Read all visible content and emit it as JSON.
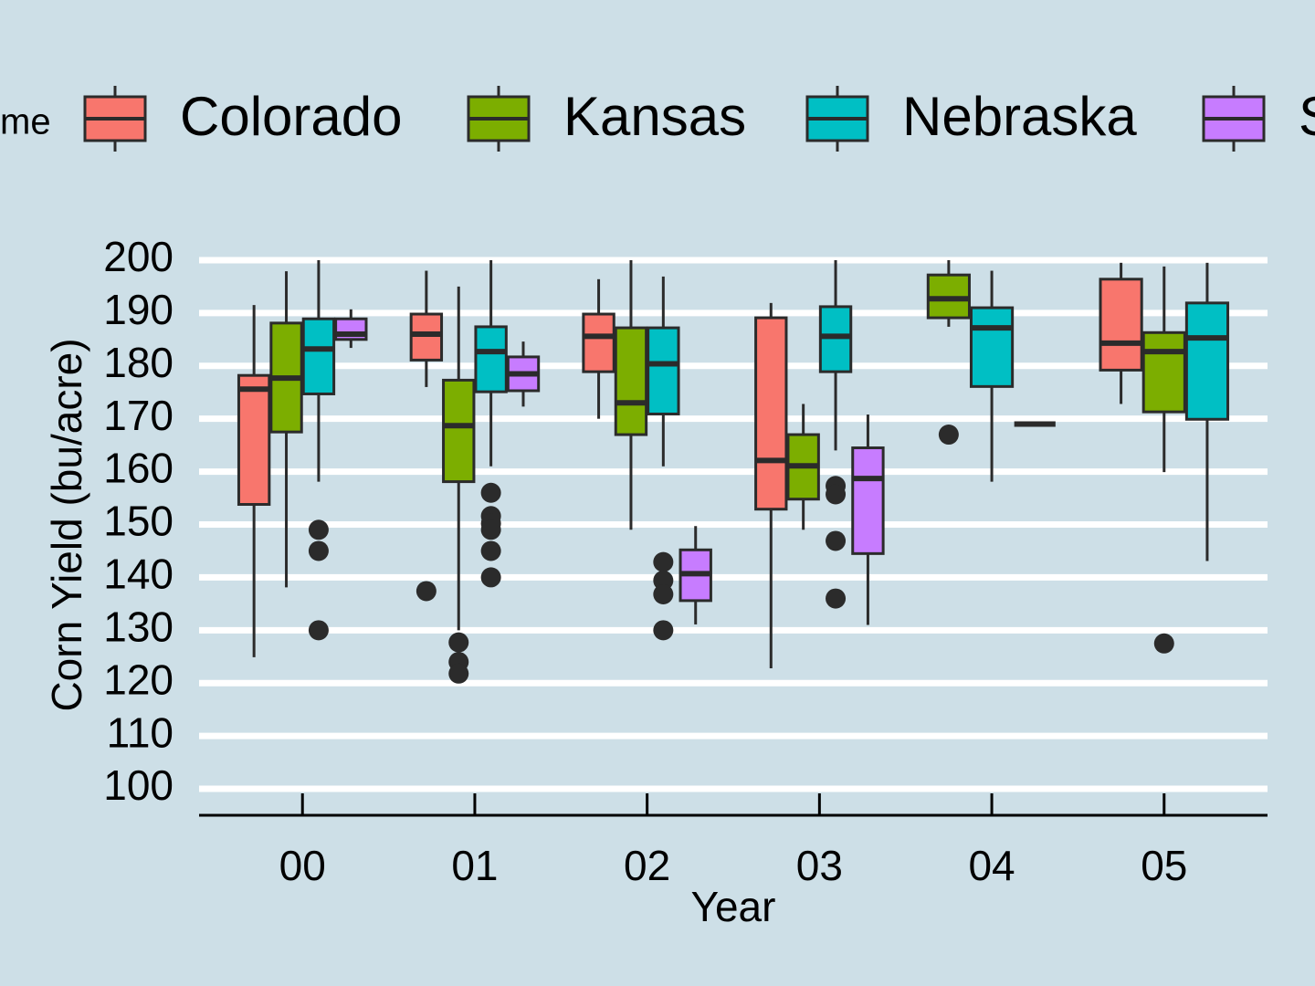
{
  "chart_data": {
    "type": "box",
    "legend_title": "me",
    "x_label": "Year",
    "y_label": "Corn Yield (bu/acre)",
    "categories": [
      "00",
      "01",
      "02",
      "03",
      "04",
      "05"
    ],
    "ylim": [
      95,
      205
    ],
    "yticks": [
      100,
      110,
      120,
      130,
      140,
      150,
      160,
      170,
      180,
      190,
      200
    ],
    "grid": true,
    "legend_position": "top",
    "series": [
      {
        "name": "Colorado",
        "color": "#f8766d",
        "boxes": [
          {
            "min": 124.9,
            "q1": 153.8,
            "median": 175.6,
            "q3": 178.2,
            "max": 191.5,
            "outliers": []
          },
          {
            "min": 176,
            "q1": 181.1,
            "median": 186,
            "q3": 189.8,
            "max": 198,
            "outliers": [
              137.4
            ]
          },
          {
            "min": 170,
            "q1": 178.9,
            "median": 185.6,
            "q3": 189.8,
            "max": 196.4,
            "outliers": []
          },
          {
            "min": 122.8,
            "q1": 152.9,
            "median": 162.1,
            "q3": 189.1,
            "max": 191.9,
            "outliers": []
          },
          null,
          {
            "min": 172.8,
            "q1": 179.2,
            "median": 184.3,
            "q3": 196.4,
            "max": 199.5,
            "outliers": []
          }
        ]
      },
      {
        "name": "Kansas",
        "color": "#7cae00",
        "boxes": [
          {
            "min": 138.1,
            "q1": 167.5,
            "median": 177.7,
            "q3": 188.1,
            "max": 197.9,
            "outliers": []
          },
          {
            "min": 130,
            "q1": 158.1,
            "median": 168.7,
            "q3": 177.3,
            "max": 195,
            "outliers": [
              127.7,
              124,
              121.8
            ]
          },
          {
            "min": 149,
            "q1": 167,
            "median": 173,
            "q3": 187.2,
            "max": 200,
            "outliers": []
          },
          {
            "min": 149,
            "q1": 154.8,
            "median": 161.1,
            "q3": 167,
            "max": 172.8,
            "outliers": []
          },
          {
            "min": 187.4,
            "q1": 189.1,
            "median": 192.7,
            "q3": 197.2,
            "max": 200,
            "outliers": [
              167
            ]
          },
          {
            "min": 159.9,
            "q1": 171.3,
            "median": 182.7,
            "q3": 186.3,
            "max": 198.8,
            "outliers": [
              127.5
            ]
          }
        ]
      },
      {
        "name": "Nebraska",
        "color": "#00bfc4",
        "boxes": [
          {
            "min": 158.1,
            "q1": 174.7,
            "median": 183.2,
            "q3": 188.9,
            "max": 200,
            "outliers": [
              149,
              145,
              130
            ]
          },
          {
            "min": 161,
            "q1": 175.1,
            "median": 182.7,
            "q3": 187.4,
            "max": 200,
            "outliers": [
              156,
              151.6,
              150.2,
              149,
              145,
              140
            ]
          },
          {
            "min": 161,
            "q1": 170.9,
            "median": 180.4,
            "q3": 187.2,
            "max": 196.9,
            "outliers": [
              142.9,
              139.4,
              136.8,
              130
            ]
          },
          {
            "min": 164,
            "q1": 178.9,
            "median": 185.6,
            "q3": 191.2,
            "max": 200,
            "outliers": [
              157.3,
              155.7,
              146.9,
              136
            ]
          },
          {
            "min": 158.1,
            "q1": 176.1,
            "median": 187.2,
            "q3": 191,
            "max": 198,
            "outliers": []
          },
          {
            "min": 143.1,
            "q1": 169.9,
            "median": 185.3,
            "q3": 191.9,
            "max": 199.5,
            "outliers": []
          }
        ]
      },
      {
        "name": "S",
        "color": "#c77cff",
        "boxes": [
          {
            "min": 183.4,
            "q1": 185,
            "median": 186,
            "q3": 188.9,
            "max": 190.7,
            "outliers": []
          },
          {
            "min": 172.3,
            "q1": 175.3,
            "median": 178.5,
            "q3": 181.7,
            "max": 184.6,
            "outliers": []
          },
          {
            "min": 131.1,
            "q1": 135.6,
            "median": 140.7,
            "q3": 145.2,
            "max": 149.7,
            "outliers": []
          },
          {
            "min": 131,
            "q1": 144.5,
            "median": 158.7,
            "q3": 164.5,
            "max": 170.8,
            "outliers": []
          },
          {
            "min": 169,
            "q1": 169,
            "median": 169,
            "q3": 169,
            "max": 169,
            "outliers": []
          },
          null
        ]
      }
    ]
  }
}
